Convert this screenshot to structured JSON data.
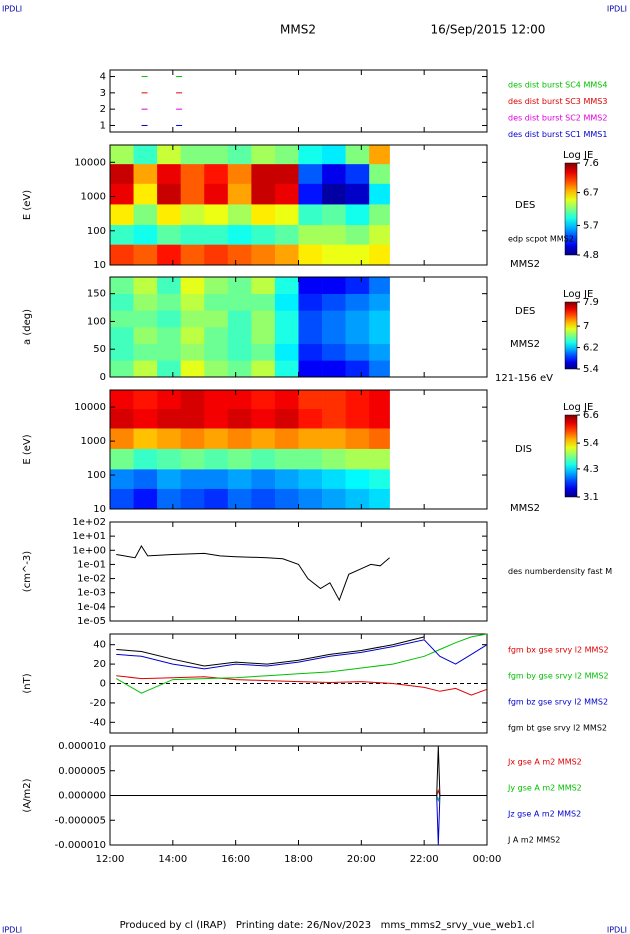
{
  "header": {
    "corner_left": "IPDLI",
    "corner_right": "IPDLI",
    "title": "MMS2",
    "date": "16/Sep/2015 12:00",
    "footer": "Produced by cl (IRAP)   Printing date: 26/Nov/2023   mms_mms2_srvy_vue_web1.cl",
    "footer_left": "IPDLI",
    "footer_right": "IPDLI"
  },
  "x_axis": {
    "xlim": [
      12,
      24
    ],
    "xticks": [
      {
        "value": 12,
        "label": "12:00"
      },
      {
        "value": 14,
        "label": "14:00"
      },
      {
        "value": 16,
        "label": "16:00"
      },
      {
        "value": 18,
        "label": "18:00"
      },
      {
        "value": 20,
        "label": "20:00"
      },
      {
        "value": 22,
        "label": "22:00"
      },
      {
        "value": 24,
        "label": "00:00"
      }
    ]
  },
  "chart_data": [
    {
      "type": "scatter",
      "ylim": [
        0.6,
        4.4
      ],
      "yticks": [
        1,
        2,
        3,
        4
      ],
      "series": [
        {
          "name": "des dist burst SC1 MMS1",
          "color": "#0000cc",
          "x": [
            13.1,
            14.2
          ],
          "values": [
            1,
            1
          ]
        },
        {
          "name": "des dist burst SC2 MMS2",
          "color": "#e000e0",
          "x": [
            13.1,
            14.2
          ],
          "values": [
            2,
            2
          ]
        },
        {
          "name": "des dist burst SC3 MMS3",
          "color": "#e00000",
          "x": [
            13.1,
            14.2
          ],
          "values": [
            3,
            3
          ]
        },
        {
          "name": "des dist burst SC4 MMS4",
          "color": "#00c000",
          "x": [
            13.1,
            14.2
          ],
          "values": [
            4,
            4
          ]
        }
      ]
    },
    {
      "type": "heatmap",
      "ylabel": "E (eV)",
      "log_y": true,
      "ylim": [
        10,
        32000
      ],
      "yticks": [
        10,
        100,
        1000,
        10000
      ],
      "labels": [
        "DES",
        "edp scpot MMS2",
        "MMS2"
      ],
      "x_bins": [
        12,
        12.75,
        13.5,
        14.25,
        15,
        15.75,
        16.5,
        17.25,
        18,
        18.75,
        19.5,
        20.25,
        20.9
      ],
      "y_bins": [
        10,
        40,
        150,
        600,
        2400,
        9000,
        32000
      ],
      "z": [
        [
          7.1,
          7.0,
          7.2,
          7.0,
          7.1,
          7.0,
          6.9,
          6.8,
          6.6,
          6.5,
          6.5,
          6.6
        ],
        [
          6.0,
          5.9,
          6.1,
          6.0,
          6.0,
          5.9,
          6.0,
          6.1,
          6.3,
          6.3,
          6.2,
          6.4
        ],
        [
          6.6,
          6.2,
          6.6,
          6.4,
          6.5,
          6.3,
          6.6,
          6.5,
          6.0,
          6.1,
          5.9,
          6.2
        ],
        [
          7.3,
          6.6,
          7.4,
          7.0,
          7.3,
          6.8,
          7.4,
          7.3,
          5.2,
          4.9,
          5.0,
          5.8
        ],
        [
          7.4,
          6.8,
          7.3,
          7.0,
          7.2,
          6.9,
          7.4,
          7.4,
          5.4,
          5.1,
          5.3,
          6.2
        ],
        [
          6.3,
          6.0,
          6.4,
          6.2,
          6.2,
          6.1,
          6.3,
          6.2,
          5.9,
          5.8,
          6.2,
          6.8
        ]
      ],
      "zlim": [
        4.8,
        7.6
      ],
      "colorbar": {
        "title": "Log JE",
        "ticks": [
          4.8,
          5.7,
          6.7,
          7.6
        ]
      }
    },
    {
      "type": "heatmap",
      "ylabel": "a (deg)",
      "ylim": [
        0,
        180
      ],
      "yticks": [
        0,
        50,
        100,
        150
      ],
      "labels": [
        "DES",
        "MMS2",
        "121-156 eV"
      ],
      "x_bins": [
        12,
        12.75,
        13.5,
        14.25,
        15,
        15.75,
        16.5,
        17.25,
        18,
        18.75,
        19.5,
        20.25,
        20.9
      ],
      "y_bins": [
        0,
        30,
        60,
        90,
        120,
        150,
        180
      ],
      "z": [
        [
          6.6,
          6.8,
          6.5,
          6.9,
          6.7,
          6.6,
          6.8,
          6.4,
          5.7,
          5.7,
          5.8,
          6.0
        ],
        [
          6.5,
          6.6,
          6.6,
          6.7,
          6.6,
          6.5,
          6.6,
          6.3,
          5.8,
          5.9,
          6.0,
          6.1
        ],
        [
          6.5,
          6.7,
          6.6,
          6.8,
          6.6,
          6.5,
          6.7,
          6.4,
          5.9,
          6.0,
          6.1,
          6.2
        ],
        [
          6.6,
          6.6,
          6.5,
          6.7,
          6.7,
          6.5,
          6.7,
          6.4,
          5.9,
          6.0,
          6.1,
          6.2
        ],
        [
          6.5,
          6.7,
          6.6,
          6.8,
          6.6,
          6.6,
          6.6,
          6.3,
          5.8,
          5.9,
          6.0,
          6.1
        ],
        [
          6.6,
          6.8,
          6.5,
          6.9,
          6.7,
          6.6,
          6.8,
          6.4,
          5.7,
          5.7,
          5.8,
          6.0
        ]
      ],
      "zlim": [
        5.4,
        7.9
      ],
      "colorbar": {
        "title": "Log JE",
        "ticks": [
          5.4,
          6.2,
          7.0,
          7.9
        ]
      }
    },
    {
      "type": "heatmap",
      "ylabel": "E (eV)",
      "log_y": true,
      "ylim": [
        10,
        32000
      ],
      "yticks": [
        10,
        100,
        1000,
        10000
      ],
      "labels": [
        "DIS",
        "MMS2"
      ],
      "x_bins": [
        12,
        12.75,
        13.5,
        14.25,
        15,
        15.75,
        16.5,
        17.25,
        18,
        18.75,
        19.5,
        20.25,
        20.9
      ],
      "y_bins": [
        10,
        40,
        150,
        600,
        2400,
        9000,
        32000
      ],
      "z": [
        [
          3.8,
          3.6,
          3.9,
          3.8,
          3.7,
          3.9,
          3.8,
          3.9,
          4.0,
          4.1,
          4.2,
          4.3
        ],
        [
          4.0,
          3.9,
          4.1,
          4.0,
          4.0,
          4.1,
          4.0,
          4.1,
          4.2,
          4.3,
          4.4,
          4.5
        ],
        [
          4.8,
          4.6,
          4.7,
          4.8,
          4.7,
          4.8,
          4.7,
          4.8,
          4.8,
          4.9,
          5.0,
          5.0
        ],
        [
          5.7,
          5.5,
          5.6,
          5.7,
          5.6,
          5.7,
          5.6,
          5.7,
          5.6,
          5.6,
          5.7,
          5.8
        ],
        [
          6.3,
          6.2,
          6.3,
          6.3,
          6.2,
          6.3,
          6.2,
          6.3,
          6.1,
          6.0,
          6.1,
          6.2
        ],
        [
          6.2,
          6.1,
          6.2,
          6.3,
          6.2,
          6.2,
          6.1,
          6.2,
          6.0,
          6.0,
          6.1,
          6.2
        ]
      ],
      "zlim": [
        3.1,
        6.6
      ],
      "colorbar": {
        "title": "Log JE",
        "ticks": [
          3.1,
          4.3,
          5.4,
          6.6
        ]
      }
    },
    {
      "type": "line",
      "ylabel": "(cm^-3)",
      "log_y": true,
      "ylim": [
        1e-05,
        100
      ],
      "yticks": [
        {
          "value": 1e-05,
          "label": "1e-05"
        },
        {
          "value": 0.0001,
          "label": "1e-04"
        },
        {
          "value": 0.001,
          "label": "1e-03"
        },
        {
          "value": 0.01,
          "label": "1e-02"
        },
        {
          "value": 0.1,
          "label": "1e-01"
        },
        {
          "value": 1,
          "label": "1e+00"
        },
        {
          "value": 10,
          "label": "1e+01"
        },
        {
          "value": 100,
          "label": "1e+02"
        }
      ],
      "x": [
        12.2,
        12.8,
        13.0,
        13.2,
        14.0,
        15.0,
        15.5,
        16.0,
        17.0,
        17.5,
        18.0,
        18.3,
        18.7,
        19.0,
        19.3,
        19.6,
        20.0,
        20.3,
        20.6,
        20.9
      ],
      "series": [
        {
          "name": "des numberdensity fast M",
          "color": "#000000",
          "values": [
            0.5,
            0.3,
            2,
            0.4,
            0.5,
            0.6,
            0.4,
            0.35,
            0.3,
            0.25,
            0.1,
            0.01,
            0.002,
            0.005,
            0.0003,
            0.02,
            0.05,
            0.1,
            0.08,
            0.3
          ]
        }
      ]
    },
    {
      "type": "line",
      "ylabel": "(nT)",
      "ylim": [
        -51,
        51
      ],
      "yticks": [
        -40,
        -20,
        0,
        20,
        40
      ],
      "zero_line": true,
      "x": [
        12.2,
        13,
        14,
        15,
        16,
        17,
        18,
        19,
        20,
        21,
        22,
        22.5,
        23,
        23.5,
        24
      ],
      "series": [
        {
          "name": "fgm bx gse srvy l2 MMS2",
          "color": "#e00000",
          "values": [
            8,
            5,
            6,
            7,
            4,
            3,
            2,
            1,
            2,
            0,
            -4,
            -8,
            -5,
            -12,
            -6
          ]
        },
        {
          "name": "fgm by gse srvy l2 MMS2",
          "color": "#00c000",
          "values": [
            5,
            -10,
            4,
            5,
            6,
            8,
            10,
            12,
            16,
            20,
            28,
            35,
            42,
            48,
            51
          ]
        },
        {
          "name": "fgm bz gse srvy l2 MMS2",
          "color": "#0000cc",
          "values": [
            30,
            28,
            20,
            15,
            20,
            18,
            22,
            28,
            32,
            38,
            45,
            28,
            20,
            30,
            40
          ]
        },
        {
          "name": "fgm bt gse srvy l2 MMS2",
          "color": "#000000",
          "values": [
            35,
            33,
            25,
            18,
            22,
            20,
            24,
            30,
            34,
            40,
            48,
            null,
            null,
            null,
            null
          ]
        }
      ]
    },
    {
      "type": "line",
      "ylabel": "(A/m2)",
      "ylim": [
        -1e-05,
        1e-05
      ],
      "yticks": [
        {
          "value": -1e-05,
          "label": "-0.000010"
        },
        -5e-06,
        {
          "value": 0,
          "label": "0.000000"
        },
        5e-06,
        {
          "value": 1e-05,
          "label": "0.000010"
        }
      ],
      "x": [
        12,
        14,
        16,
        18,
        20,
        22,
        22.4,
        22.45,
        22.5,
        23,
        24
      ],
      "series": [
        {
          "name": "Jx gse A m2 MMS2",
          "color": "#e00000",
          "values": [
            0,
            0,
            0,
            0,
            0,
            0,
            0,
            1e-06,
            0,
            0,
            0
          ]
        },
        {
          "name": "Jy gse A m2 MMS2",
          "color": "#00c000",
          "values": [
            0,
            0,
            0,
            0,
            0,
            0,
            0,
            -1e-06,
            0,
            0,
            0
          ]
        },
        {
          "name": "Jz gse A m2 MMS2",
          "color": "#0000cc",
          "values": [
            0,
            0,
            0,
            0,
            0,
            0,
            0,
            -1e-05,
            0,
            0,
            0
          ]
        },
        {
          "name": "J A m2 MMS2",
          "color": "#000000",
          "values": [
            0,
            0,
            0,
            0,
            0,
            0,
            0,
            1e-05,
            0,
            0,
            0
          ]
        }
      ]
    }
  ]
}
